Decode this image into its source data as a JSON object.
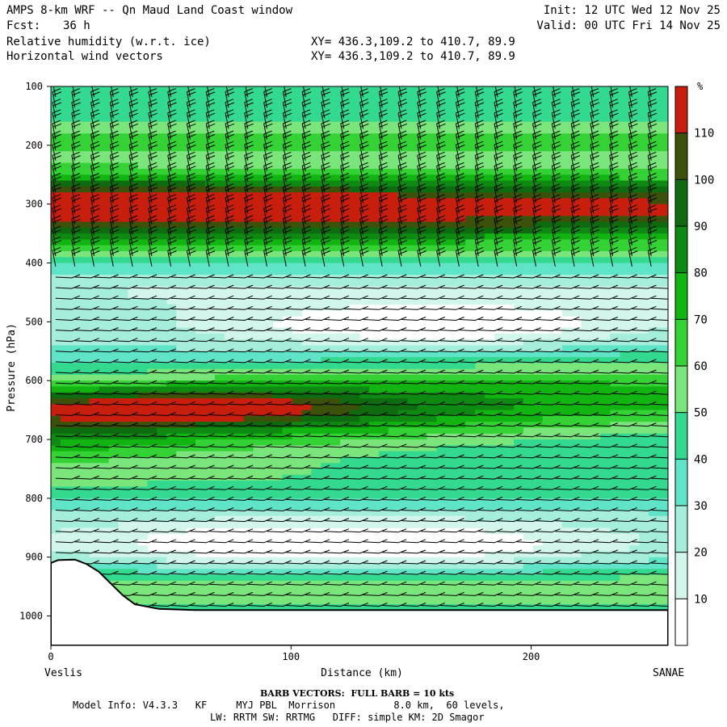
{
  "header": {
    "title": "AMPS 8-km WRF -- Qn Maud Land Coast window",
    "forecast_label": "Fcst:",
    "forecast_value": "36 h",
    "init": "Init: 12 UTC Wed 12 Nov 25",
    "valid": "Valid: 00 UTC Fri 14 Nov 25",
    "field1": "Relative humidity (w.r.t. ice)",
    "field2": "Horizontal wind vectors",
    "xy1": "XY= 436.3,109.2 to 410.7, 89.9",
    "xy2": "XY= 436.3,109.2 to 410.7, 89.9"
  },
  "footer": {
    "barb_note": "BARB VECTORS:  FULL BARB = 10 kts",
    "model_line1": "Model Info: V4.3.3   KF     MYJ PBL  Morrison          8.0 km,  60 levels,",
    "model_line2": "LW: RRTM SW: RRTMG   DIFF: simple KM: 2D Smagor"
  },
  "colors": {
    "bands": [
      "#ffffff",
      "#ffffff",
      "#ffffff",
      "#d2f5ec",
      "#a6eedc",
      "#5fe4c8",
      "#33d98f",
      "#7ae57a",
      "#35d235",
      "#12b412",
      "#0e8a12",
      "#0f6b0f",
      "#3c520a",
      "#c81e0e"
    ]
  },
  "chart_data": {
    "type": "heatmap",
    "title": "Relative humidity (w.r.t. ice) cross-section with horizontal wind barbs",
    "xlabel": "Distance (km)",
    "ylabel": "Pressure (hPa)",
    "xlim": [
      0,
      257
    ],
    "ylim": [
      1050,
      100
    ],
    "x_ticks": [
      "0",
      "100",
      "200"
    ],
    "y_ticks": [
      "100",
      "200",
      "300",
      "400",
      "500",
      "600",
      "700",
      "800",
      "900",
      "1000"
    ],
    "x_start_label": "Veslis",
    "x_end_label": "SANAE",
    "colorbar": {
      "unit": "%",
      "levels": [
        "10",
        "20",
        "30",
        "40",
        "50",
        "60",
        "70",
        "80",
        "90",
        "100",
        "110"
      ]
    },
    "terrain_profile": {
      "distance_km": [
        0,
        3,
        10,
        15,
        20,
        25,
        30,
        35,
        45,
        60,
        100,
        150,
        200,
        257
      ],
      "pressure_hpa": [
        910,
        905,
        904,
        912,
        925,
        945,
        965,
        980,
        988,
        990,
        990,
        990,
        990,
        990
      ]
    },
    "rh_layers": [
      {
        "level": "110+",
        "description": "saturated pocket near 620-720 hPa, 0-150 km"
      },
      {
        "level": "100-110",
        "description": "dark moist layer 220-390 hPa and 600-760 hPa"
      },
      {
        "level": "30-",
        "description": "dry layer near 500 hPa, 80-200 km"
      }
    ]
  }
}
